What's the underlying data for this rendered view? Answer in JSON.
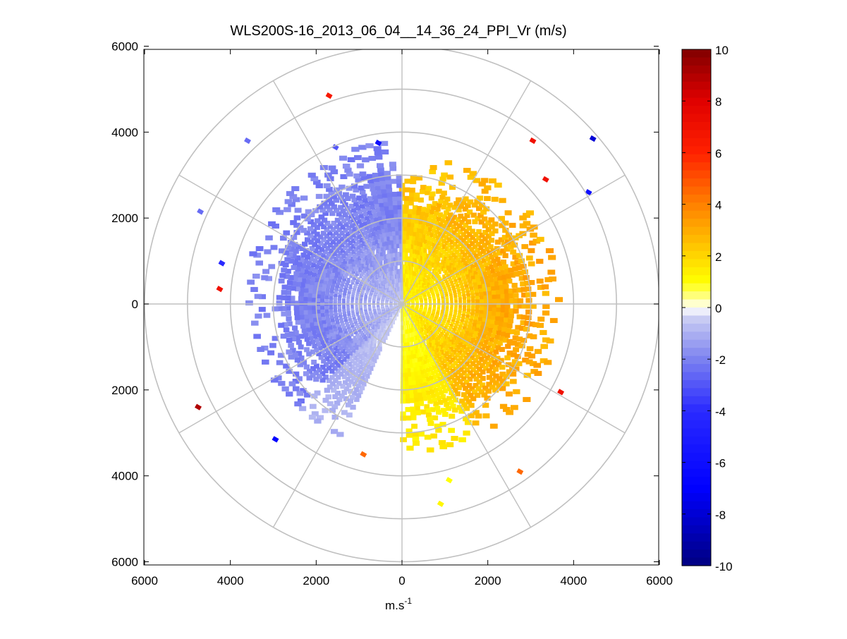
{
  "chart_data": {
    "type": "heatmap",
    "subtype": "polar-ppi",
    "title": "WLS200S-16_2013_06_04__14_36_24_PPI_Vr (m/s)",
    "xlabel": "m.s",
    "xlabel_sup": "-1",
    "xlim": [
      -6000,
      6000
    ],
    "ylim": [
      -6000,
      6000
    ],
    "x_ticks": [
      -6000,
      -4000,
      -2000,
      0,
      2000,
      4000,
      6000
    ],
    "y_ticks": [
      6000,
      4000,
      2000,
      0,
      -2000,
      -4000,
      -6000
    ],
    "x_tick_labels": [
      "6000",
      "4000",
      "2000",
      "0",
      "2000",
      "4000",
      "6000"
    ],
    "y_tick_labels": [
      "6000",
      "4000",
      "2000",
      "0",
      "2000",
      "4000",
      "6000"
    ],
    "range_rings": [
      1000,
      2000,
      3000,
      4000,
      5000,
      6000
    ],
    "spoke_angles_deg": [
      0,
      30,
      60,
      90,
      120,
      150,
      180,
      210,
      240,
      270,
      300,
      330
    ],
    "radial_velocity_field": {
      "description_regions": [
        {
          "azimuth_from_north_deg": [
            0,
            175
          ],
          "range_m": [
            0,
            2900
          ],
          "velocity_ms": [
            0.5,
            3.5
          ]
        },
        {
          "azimuth_from_north_deg": [
            205,
            360
          ],
          "range_m": [
            0,
            3000
          ],
          "velocity_ms": [
            -2.5,
            -0.3
          ]
        }
      ],
      "sparse_far_gates": [
        {
          "x": -1700,
          "y": 4850,
          "v": 6.5
        },
        {
          "x": -3600,
          "y": 3800,
          "v": -2.5
        },
        {
          "x": -4700,
          "y": 2150,
          "v": -2.5
        },
        {
          "x": -4200,
          "y": 950,
          "v": -4.0
        },
        {
          "x": -4250,
          "y": 350,
          "v": 7.0
        },
        {
          "x": -4750,
          "y": -2400,
          "v": 9.0
        },
        {
          "x": -2950,
          "y": -3150,
          "v": -7.0
        },
        {
          "x": 3050,
          "y": 3800,
          "v": 7.0
        },
        {
          "x": 3350,
          "y": 2900,
          "v": 7.0
        },
        {
          "x": 4450,
          "y": 3850,
          "v": -8.0
        },
        {
          "x": 4350,
          "y": 2600,
          "v": -6.0
        },
        {
          "x": 3700,
          "y": -2050,
          "v": 7.0
        },
        {
          "x": 2750,
          "y": -3900,
          "v": 4.5
        },
        {
          "x": 900,
          "y": -4650,
          "v": 1.2
        },
        {
          "x": 1100,
          "y": -4100,
          "v": 1.0
        },
        {
          "x": -900,
          "y": -3500,
          "v": 4.5
        },
        {
          "x": -550,
          "y": 3750,
          "v": -6.0
        },
        {
          "x": -1550,
          "y": 3650,
          "v": -3.0
        }
      ]
    },
    "colorbar": {
      "label_values": [
        10,
        8,
        6,
        4,
        2,
        0,
        -2,
        -4,
        -6,
        -8,
        -10
      ],
      "label_text": [
        "10",
        "8",
        "6",
        "4",
        "2",
        "0",
        "-2",
        "-4",
        "-6",
        "-8",
        "-10"
      ],
      "range": [
        -10,
        10
      ],
      "colormap": "blue-white-yellow-red"
    },
    "colors": {
      "grid": "#c0c0c0",
      "negative_max": "#000080",
      "negative_mid": "#3030ff",
      "negative_low": "#c0c8f0",
      "positive_low": "#ffff80",
      "positive_mid": "#ffb000",
      "positive_high": "#ff4000",
      "positive_max": "#800000"
    }
  }
}
